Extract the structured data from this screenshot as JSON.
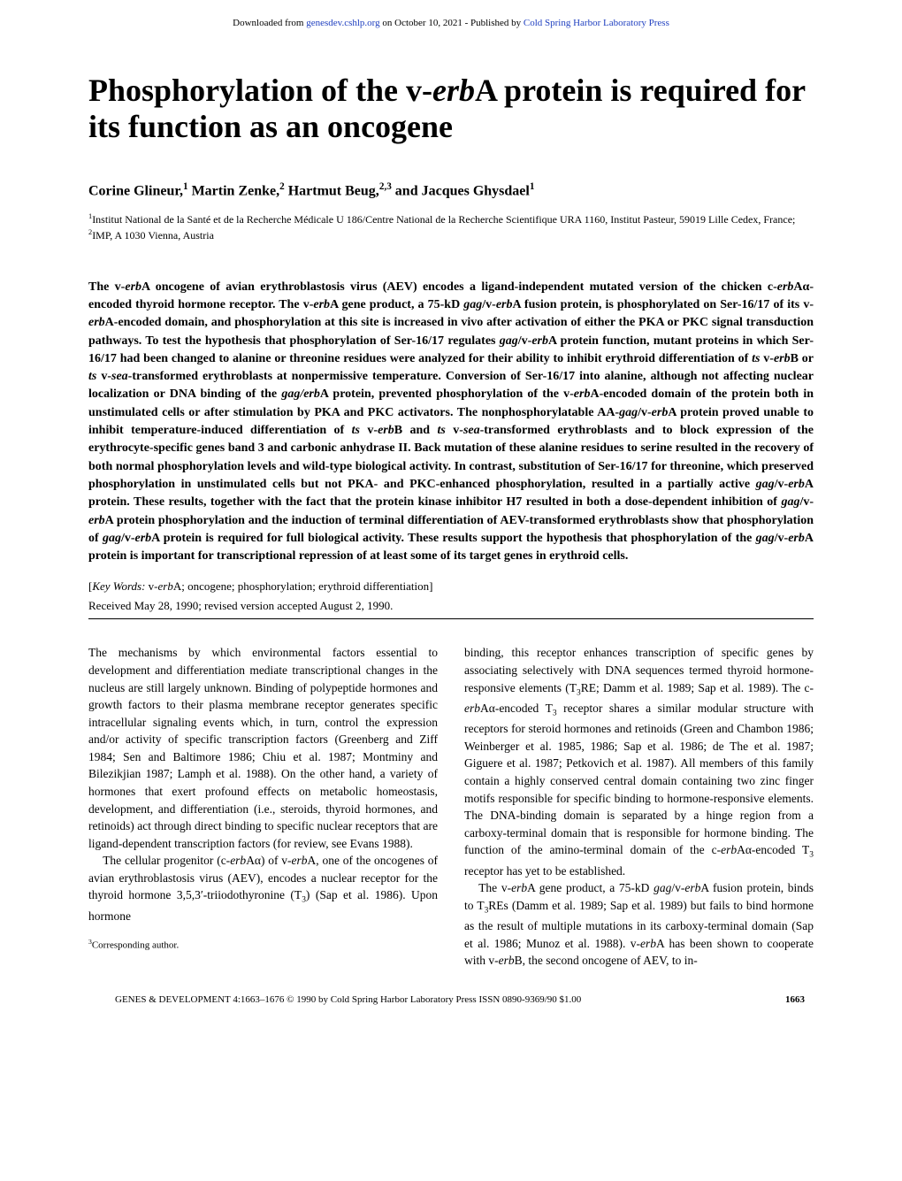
{
  "header": {
    "prefix": "Downloaded from ",
    "link1": "genesdev.cshlp.org",
    "mid": " on October 10, 2021 - Published by ",
    "link2": "Cold Spring Harbor Laboratory Press"
  },
  "title_html": "Phosphorylation of the v-<span class=\"italic\">erb</span>A protein is required for its function as an oncogene",
  "authors_html": "Corine Glineur,<sup>1</sup> Martin Zenke,<sup>2</sup> Hartmut Beug,<sup>2,3</sup> and Jacques Ghysdael<sup>1</sup>",
  "affil_html": "<sup>1</sup>Institut National de la Santé et de la Recherche Médicale U 186/Centre National de la Recherche Scientifique URA 1160, Institut Pasteur, 59019 Lille Cedex, France; <sup>2</sup>IMP, A 1030 Vienna, Austria",
  "abstract_html": "The v-<span class=\"ital\">erb</span>A oncogene of avian erythroblastosis virus (AEV) encodes a ligand-independent mutated version of the chicken c-<span class=\"ital\">erb</span>Aα-encoded thyroid hormone receptor. The v-<span class=\"ital\">erb</span>A gene product, a 75-kD <span class=\"ital\">gag</span>/v-<span class=\"ital\">erb</span>A fusion protein, is phosphorylated on Ser-16/17 of its v-<span class=\"ital\">erb</span>A-encoded domain, and phosphorylation at this site is increased in vivo after activation of either the PKA or PKC signal transduction pathways. To test the hypothesis that phosphorylation of Ser-16/17 regulates <span class=\"ital\">gag</span>/v-<span class=\"ital\">erb</span>A protein function, mutant proteins in which Ser-16/17 had been changed to alanine or threonine residues were analyzed for their ability to inhibit erythroid differentiation of <span class=\"ital\">ts</span> v-<span class=\"ital\">erb</span>B or <span class=\"ital\">ts</span> v-<span class=\"ital\">sea</span>-transformed erythroblasts at nonpermissive temperature. Conversion of Ser-16/17 into alanine, although not affecting nuclear localization or DNA binding of the <span class=\"ital\">gag/erb</span>A protein, prevented phosphorylation of the v-<span class=\"ital\">erb</span>A-encoded domain of the protein both in unstimulated cells or after stimulation by PKA and PKC activators. The nonphosphorylatable AA-<span class=\"ital\">gag</span>/v-<span class=\"ital\">erb</span>A protein proved unable to inhibit temperature-induced differentiation of <span class=\"ital\">ts</span> v-<span class=\"ital\">erb</span>B and <span class=\"ital\">ts</span> v-<span class=\"ital\">sea</span>-transformed erythroblasts and to block expression of the erythrocyte-specific genes band 3 and carbonic anhydrase II. Back mutation of these alanine residues to serine resulted in the recovery of both normal phosphorylation levels and wild-type biological activity. In contrast, substitution of Ser-16/17 for threonine, which preserved phosphorylation in unstimulated cells but not PKA- and PKC-enhanced phosphorylation, resulted in a partially active <span class=\"ital\">gag</span>/v-<span class=\"ital\">erb</span>A protein. These results, together with the fact that the protein kinase inhibitor H7 resulted in both a dose-dependent inhibition of <span class=\"ital\">gag</span>/v-<span class=\"ital\">erb</span>A protein phosphorylation and the induction of terminal differentiation of AEV-transformed erythroblasts show that phosphorylation of <span class=\"ital\">gag</span>/v-<span class=\"ital\">erb</span>A protein is required for full biological activity. These results support the hypothesis that phosphorylation of the <span class=\"ital\">gag</span>/v-<span class=\"ital\">erb</span>A protein is important for transcriptional repression of at least some of its target genes in erythroid cells.",
  "keywords_html": "[<span class=\"label\">Key Words:</span> v-<span class=\"ital\">erb</span>A; oncogene; phosphorylation; erythroid differentiation]",
  "received": "Received May 28, 1990; revised version accepted August 2, 1990.",
  "col1_p1_html": "The mechanisms by which environmental factors essential to development and differentiation mediate transcriptional changes in the nucleus are still largely unknown. Binding of polypeptide hormones and growth factors to their plasma membrane receptor generates specific intracellular signaling events which, in turn, control the expression and/or activity of specific transcription factors (Greenberg and Ziff 1984; Sen and Baltimore 1986; Chiu et al. 1987; Montminy and Bilezikjian 1987; Lamph et al. 1988). On the other hand, a variety of hormones that exert profound effects on metabolic homeostasis, development, and differentiation (i.e., steroids, thyroid hormones, and retinoids) act through direct binding to specific nuclear receptors that are ligand-dependent transcription factors (for review, see Evans 1988).",
  "col1_p2_html": "The cellular progenitor (c-<span class=\"ital\">erb</span>Aα) of v-<span class=\"ital\">erb</span>A, one of the oncogenes of avian erythroblastosis virus (AEV), encodes a nuclear receptor for the thyroid hormone 3,5,3′-triiodothyronine (T<sub>3</sub>) (Sap et al. 1986). Upon hormone",
  "col2_p1_html": "binding, this receptor enhances transcription of specific genes by associating selectively with DNA sequences termed thyroid hormone-responsive elements (T<sub>3</sub>RE; Damm et al. 1989; Sap et al. 1989). The c-<span class=\"ital\">erb</span>Aα-encoded T<sub>3</sub> receptor shares a similar modular structure with receptors for steroid hormones and retinoids (Green and Chambon 1986; Weinberger et al. 1985, 1986; Sap et al. 1986; de The et al. 1987; Giguere et al. 1987; Petkovich et al. 1987). All members of this family contain a highly conserved central domain containing two zinc finger motifs responsible for specific binding to hormone-responsive elements. The DNA-binding domain is separated by a hinge region from a carboxy-terminal domain that is responsible for hormone binding. The function of the amino-terminal domain of the c-<span class=\"ital\">erb</span>Aα-encoded T<sub>3</sub> receptor has yet to be established.",
  "col2_p2_html": "The v-<span class=\"ital\">erb</span>A gene product, a 75-kD <span class=\"ital\">gag</span>/v-<span class=\"ital\">erb</span>A fusion protein, binds to T<sub>3</sub>REs (Damm et al. 1989; Sap et al. 1989) but fails to bind hormone as the result of multiple mutations in its carboxy-terminal domain (Sap et al. 1986; Munoz et al. 1988). v-<span class=\"ital\">erb</span>A has been shown to cooperate with v-<span class=\"ital\">erb</span>B, the second oncogene of AEV, to in-",
  "corr_html": "<sup>3</sup>Corresponding author.",
  "footer": {
    "line": "GENES & DEVELOPMENT 4:1663–1676 © 1990 by Cold Spring Harbor Laboratory Press ISSN 0890-9369/90 $1.00",
    "pagenum": "1663"
  }
}
